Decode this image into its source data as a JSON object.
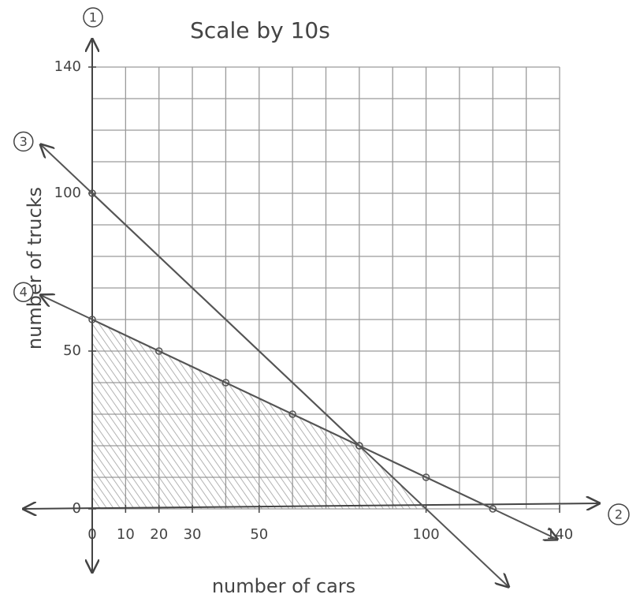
{
  "chart_data": {
    "type": "line",
    "title": "Scale by 10s",
    "x_label": "number of cars",
    "y_label": "number of trucks",
    "axis_markers": {
      "y": "1",
      "x": "2"
    },
    "xlim": [
      0,
      140
    ],
    "ylim": [
      0,
      140
    ],
    "xticks": [
      0,
      10,
      20,
      30,
      50,
      100,
      140
    ],
    "yticks": [
      0,
      50,
      100,
      140
    ],
    "grid": true,
    "grid_step": 10,
    "shade_below": true,
    "series": [
      {
        "name": "3",
        "color": "#555555",
        "x": [
          0,
          80
        ],
        "values": [
          100,
          20
        ]
      },
      {
        "name": "4",
        "color": "#555555",
        "x": [
          0,
          20,
          40,
          60,
          80,
          100,
          120
        ],
        "values": [
          60,
          50,
          40,
          30,
          20,
          10,
          0
        ]
      }
    ]
  }
}
